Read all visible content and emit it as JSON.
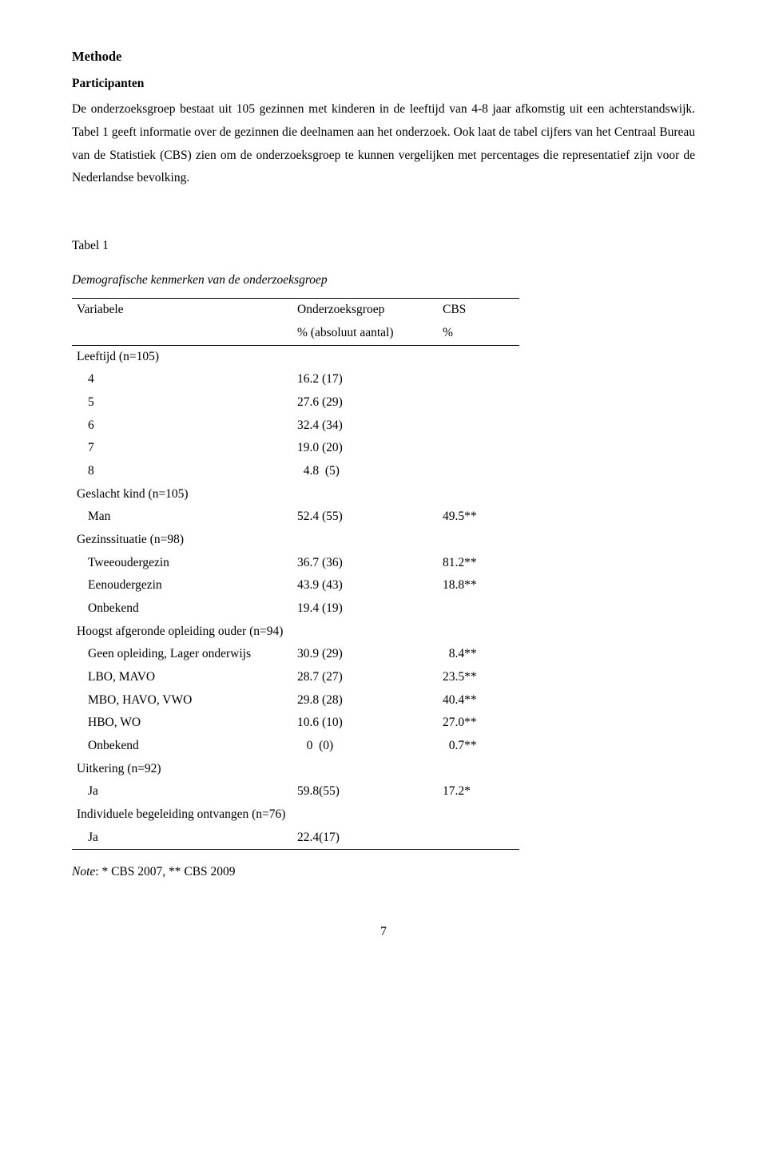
{
  "headings": {
    "title": "Methode",
    "sub": "Participanten"
  },
  "paragraph": "De onderzoeksgroep bestaat uit 105 gezinnen met kinderen in de leeftijd van 4-8 jaar afkomstig uit een achterstandswijk. Tabel 1 geeft informatie over de gezinnen die deelnamen aan het onderzoek. Ook laat de tabel cijfers van het Centraal Bureau van de Statistiek (CBS) zien om de onderzoeksgroep te kunnen vergelijken met percentages die representatief zijn voor de Nederlandse bevolking.",
  "table": {
    "label": "Tabel 1",
    "caption": "Demografische kenmerken van de onderzoeksgroep",
    "header": {
      "c1": "Variabele",
      "c2": "Onderzoeksgroep",
      "c3": "CBS"
    },
    "subheader": {
      "c2": "% (absoluut aantal)",
      "c3": "%"
    },
    "groups": [
      {
        "heading": "Leeftijd (n=105)",
        "rows": [
          {
            "label": "4",
            "val": "16.2 (17)",
            "cbs": ""
          },
          {
            "label": "5",
            "val": "27.6 (29)",
            "cbs": ""
          },
          {
            "label": "6",
            "val": "32.4 (34)",
            "cbs": ""
          },
          {
            "label": "7",
            "val": "19.0 (20)",
            "cbs": ""
          },
          {
            "label": "8",
            "val": "  4.8  (5)",
            "cbs": ""
          }
        ]
      },
      {
        "heading": "Geslacht kind (n=105)",
        "rows": [
          {
            "label": "Man",
            "val": "52.4 (55)",
            "cbs": "49.5**"
          }
        ]
      },
      {
        "heading": "Gezinssituatie (n=98)",
        "rows": [
          {
            "label": "Tweeoudergezin",
            "val": "36.7 (36)",
            "cbs": "81.2**"
          },
          {
            "label": "Eenoudergezin",
            "val": "43.9 (43)",
            "cbs": "18.8**"
          },
          {
            "label": "Onbekend",
            "val": "19.4 (19)",
            "cbs": ""
          }
        ]
      },
      {
        "heading": "Hoogst afgeronde opleiding ouder (n=94)",
        "rows": [
          {
            "label": "Geen opleiding, Lager onderwijs",
            "val": "30.9 (29)",
            "cbs": "  8.4**"
          },
          {
            "label": "LBO, MAVO",
            "val": "28.7 (27)",
            "cbs": "23.5**"
          },
          {
            "label": "MBO, HAVO, VWO",
            "val": "29.8 (28)",
            "cbs": "40.4**"
          },
          {
            "label": "HBO, WO",
            "val": "10.6 (10)",
            "cbs": "27.0**"
          },
          {
            "label": "Onbekend",
            "val": "   0  (0)",
            "cbs": "  0.7**"
          }
        ]
      },
      {
        "heading": "Uitkering (n=92)",
        "rows": [
          {
            "label": "Ja",
            "val": "59.8(55)",
            "cbs": "17.2*"
          }
        ]
      },
      {
        "heading": "Individuele begeleiding ontvangen (n=76)",
        "rows": [
          {
            "label": "Ja",
            "val": "22.4(17)",
            "cbs": ""
          }
        ]
      }
    ]
  },
  "note": {
    "lead": "Note",
    "text": ": * CBS 2007, ** CBS 2009"
  },
  "page": "7"
}
